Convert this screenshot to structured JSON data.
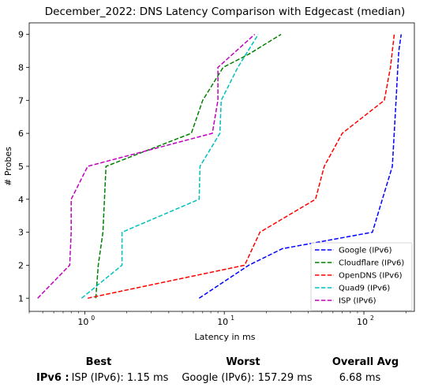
{
  "chart_data": {
    "type": "line",
    "title": "December_2022: DNS Latency Comparison with Edgecast (median)",
    "xlabel": "Latency in ms",
    "ylabel": "# Probes",
    "xscale": "log",
    "xlim": [
      0.4,
      230
    ],
    "ylim": [
      0.6,
      9.35
    ],
    "x_ticks": [
      {
        "value": 1,
        "label": "10"
      },
      {
        "value": 10,
        "label": "10"
      },
      {
        "value": 100,
        "label": "10"
      }
    ],
    "x_tick_exponents": [
      "0",
      "1",
      "2"
    ],
    "y_ticks": [
      1,
      2,
      3,
      4,
      5,
      6,
      7,
      8,
      9
    ],
    "grid": false,
    "legend_position": "lower-right",
    "series": [
      {
        "name": "Google (IPv6)",
        "color": "#0000ff",
        "x": [
          6.6,
          15.0,
          26.0,
          115.0,
          160.0,
          170.0,
          175.0,
          178.0,
          185.0
        ],
        "y": [
          1,
          2,
          2.5,
          3,
          5,
          7,
          8,
          8.5,
          9
        ]
      },
      {
        "name": "Cloudflare (IPv6)",
        "color": "#008000",
        "x": [
          1.2,
          1.25,
          1.35,
          1.42,
          5.8,
          7.0,
          9.8,
          15.0,
          25.5
        ],
        "y": [
          1,
          2,
          3,
          5,
          6,
          7,
          8,
          8.4,
          9
        ]
      },
      {
        "name": "OpenDNS (IPv6)",
        "color": "#ff0000",
        "x": [
          1.05,
          14.0,
          18.0,
          45.0,
          52.0,
          70.0,
          140.0,
          155.0,
          165.0
        ],
        "y": [
          1,
          2,
          3,
          4,
          5,
          6,
          7,
          8,
          9
        ]
      },
      {
        "name": "Quad9 (IPv6)",
        "color": "#00bfbf",
        "x": [
          0.95,
          1.85,
          1.85,
          6.6,
          6.7,
          9.3,
          9.5,
          12.5,
          17.5
        ],
        "y": [
          1,
          2,
          3,
          4,
          5,
          6,
          7,
          8,
          9
        ]
      },
      {
        "name": "ISP (IPv6)",
        "color": "#bf00bf",
        "x": [
          0.46,
          0.78,
          0.8,
          0.8,
          1.05,
          8.2,
          9.0,
          9.0,
          16.5
        ],
        "y": [
          1,
          2,
          3,
          4,
          5,
          6,
          7,
          8,
          9
        ]
      }
    ]
  },
  "summary": {
    "headers": {
      "best": "Best",
      "worst": "Worst",
      "avg": "Overall Avg"
    },
    "rows": [
      {
        "label": "IPv6 :",
        "best": "ISP (IPv6): 1.15 ms",
        "worst": "Google (IPv6): 157.29 ms",
        "avg": "6.68 ms"
      }
    ]
  }
}
